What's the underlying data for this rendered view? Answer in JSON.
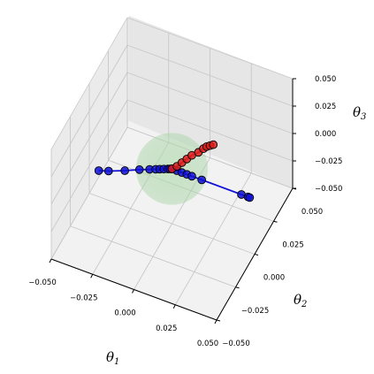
{
  "chart_data": {
    "type": "scatter",
    "projection": "3d",
    "title": "",
    "xlabel": {
      "symbol": "θ",
      "subscript": "1"
    },
    "ylabel": {
      "symbol": "θ",
      "subscript": "2"
    },
    "zlabel": {
      "symbol": "θ",
      "subscript": "3"
    },
    "xlim": [
      -0.05,
      0.05
    ],
    "ylim": [
      -0.05,
      0.05
    ],
    "zlim": [
      -0.05,
      0.05
    ],
    "x_ticks": [
      "−0.050",
      "−0.025",
      "0.000",
      "0.025",
      "0.050"
    ],
    "y_ticks": [
      "−0.050",
      "−0.025",
      "0.000",
      "0.025",
      "0.050"
    ],
    "z_ticks": [
      "−0.050",
      "−0.025",
      "0.000",
      "0.025",
      "0.050"
    ],
    "grid": true,
    "region": {
      "shape": "sphere",
      "center": [
        0,
        0,
        0
      ],
      "radius": 0.02,
      "color": "#a9d6a6"
    },
    "series": [
      {
        "color": "#1010d8",
        "points": [
          [
            -0.036,
            -0.018,
            0.0
          ],
          [
            -0.031,
            -0.016,
            0.0
          ],
          [
            -0.023,
            -0.012,
            0.0
          ],
          [
            -0.016,
            -0.008,
            0.0
          ],
          [
            -0.011,
            -0.0055,
            0.0
          ],
          [
            -0.008,
            -0.004,
            0.0
          ],
          [
            -0.006,
            -0.003,
            0.0
          ],
          [
            -0.004,
            -0.002,
            0.0
          ],
          [
            -0.002,
            -0.001,
            0.0
          ],
          [
            -0.001,
            -0.0005,
            0.0
          ],
          [
            0.0,
            0.0,
            0.0
          ],
          [
            0.0,
            0.0,
            0.0
          ],
          [
            0.003,
            0.0,
            0.0
          ],
          [
            0.006,
            0.0,
            0.0
          ],
          [
            0.009,
            0.0,
            0.0
          ],
          [
            0.012,
            0.0,
            0.0
          ],
          [
            0.018,
            0.0,
            0.0
          ],
          [
            0.042,
            0.0,
            0.0
          ],
          [
            0.046,
            0.0,
            0.0
          ],
          [
            0.047,
            0.0,
            0.0
          ]
        ]
      },
      {
        "color": "#dd1c1c",
        "points": [
          [
            0.0,
            0.0,
            0.0
          ],
          [
            0.003,
            0.0,
            0.004
          ],
          [
            0.006,
            0.0,
            0.009
          ],
          [
            0.009,
            0.0,
            0.014
          ],
          [
            0.012,
            0.0,
            0.019
          ],
          [
            0.016,
            0.0,
            0.024
          ],
          [
            0.019,
            0.0,
            0.029
          ],
          [
            0.021,
            0.0,
            0.032
          ],
          [
            0.023,
            0.0,
            0.034
          ],
          [
            0.025,
            0.0,
            0.036
          ]
        ]
      }
    ]
  }
}
